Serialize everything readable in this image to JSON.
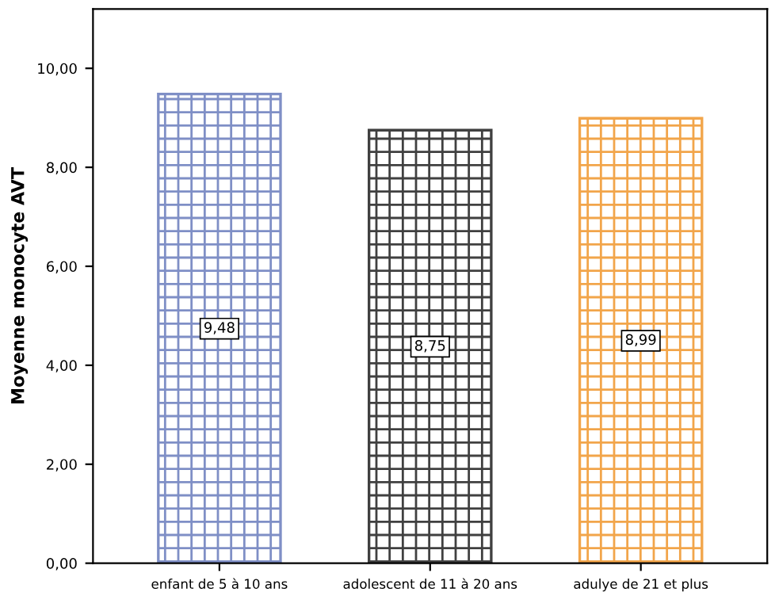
{
  "chart_data": {
    "type": "bar",
    "ylabel": "Moyenne monocyte AVT",
    "categories": [
      "enfant de 5 à 10 ans",
      "adolescent de 11 à 20 ans",
      "adulye de 21 et plus"
    ],
    "values": [
      9.48,
      8.75,
      8.99
    ],
    "colors": [
      "#7f8fc6",
      "#404040",
      "#f2a54a"
    ],
    "value_labels": [
      "9,48",
      "8,75",
      "8,99"
    ],
    "ylim": [
      0,
      11.2
    ],
    "yticks": [
      {
        "value": 0,
        "label": "0,00"
      },
      {
        "value": 2,
        "label": "2,00"
      },
      {
        "value": 4,
        "label": "4,00"
      },
      {
        "value": 6,
        "label": "6,00"
      },
      {
        "value": 8,
        "label": "8,00"
      },
      {
        "value": 10,
        "label": "10,00"
      }
    ],
    "grid": false
  }
}
